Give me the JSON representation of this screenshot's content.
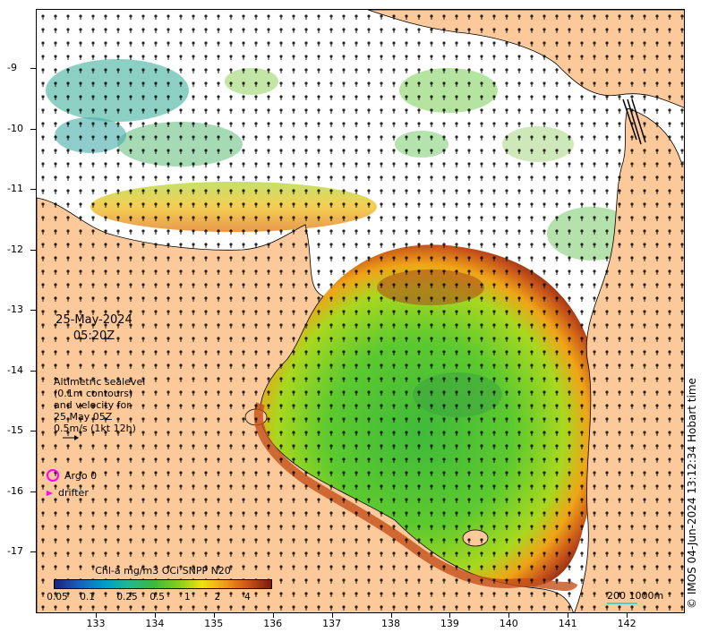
{
  "date_label": {
    "date": "25-May-2024",
    "time": "05:20Z"
  },
  "annotation": {
    "line1": "Altimetric sealevel",
    "line2": "(0.1m contours)",
    "line3": "and velocity for",
    "line4": "25 May 05Z",
    "line5": "0.5m/s (1kt 12h)"
  },
  "legend": {
    "argo_label": "Argo 0",
    "drifter_label": "drifter"
  },
  "colorbar": {
    "title": "Chl-a mg/m3 OCi SNPP N20",
    "ticks": [
      "0.05",
      "0.1",
      "0.25",
      "0.5",
      "1",
      "2",
      "4"
    ]
  },
  "scalebar": {
    "label": "200  1000m"
  },
  "credit": "© IMOS 04-Jun-2024 13:12:34 Hobart time",
  "axes": {
    "y_ticks": [
      "-9",
      "-10",
      "-11",
      "-12",
      "-13",
      "-14",
      "-15",
      "-16",
      "-17"
    ],
    "x_ticks": [
      "133",
      "134",
      "135",
      "136",
      "137",
      "138",
      "139",
      "140",
      "141",
      "142"
    ]
  },
  "colors": {
    "land": "#fcc99a",
    "argo": "#ff00ff",
    "chl_low": "#1f3fa0",
    "chl_mid": "#44c43a",
    "chl_high": "#7a2410"
  }
}
